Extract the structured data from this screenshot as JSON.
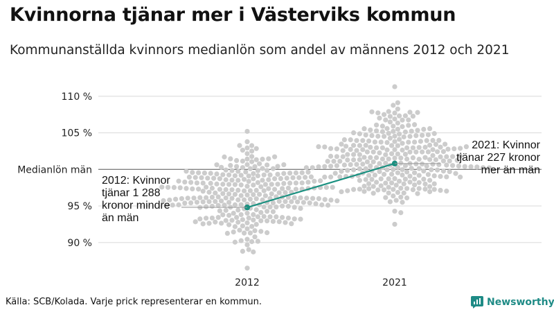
{
  "title": "Kvinnorna tjänar mer i Västerviks kommun",
  "subtitle": "Kommunanställda kvinnors medianlön som andel av männens 2012 och 2021",
  "source": "Källa: SCB/Kolada. Varje prick representerar en kommun.",
  "brand": "Newsworthy",
  "colors": {
    "dots": "#cccccc",
    "highlight": "#1a9080",
    "grid": "#dddddd",
    "ref_line": "#555555"
  },
  "chart_data": {
    "type": "scatter",
    "subtype": "beeswarm-with-highlight-line",
    "categories": [
      "2012",
      "2021"
    ],
    "y_tick_labels": [
      "110 %",
      "105 %",
      "Medianlön män",
      "95 %",
      "90 %"
    ],
    "y_ticks": [
      110,
      105,
      100,
      95,
      90
    ],
    "ylim": [
      86,
      112
    ],
    "reference_line": {
      "value": 100,
      "label": "Medianlön män"
    },
    "highlight": {
      "name": "Västerviks kommun",
      "values": [
        {
          "x": "2012",
          "y": 94.8
        },
        {
          "x": "2021",
          "y": 100.8
        }
      ]
    },
    "annotations": [
      {
        "x": "2012",
        "lines": [
          "2012: Kvinnor",
          "tjänar 1 288",
          "kronor mindre",
          "än män"
        ]
      },
      {
        "x": "2021",
        "lines": [
          "2021: Kvinnor",
          "tjänar 227 kronor",
          "mer än män"
        ]
      }
    ],
    "distributions": [
      {
        "x": "2012",
        "min": 86.5,
        "max": 105.2,
        "median": 96.5,
        "spread": 3.0
      },
      {
        "x": "2021",
        "min": 92.5,
        "max": 111.3,
        "median": 101.5,
        "spread": 3.0
      }
    ]
  }
}
